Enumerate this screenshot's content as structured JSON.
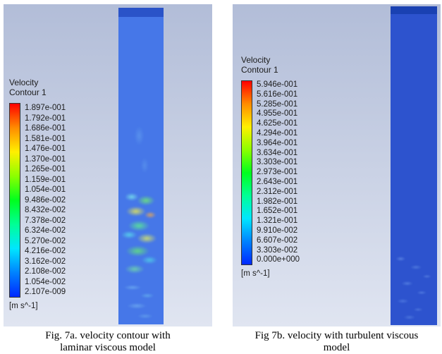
{
  "colorbar_stops": [
    "#ff0000",
    "#ff8c00",
    "#fff000",
    "#8cff00",
    "#00ff1e",
    "#00ff96",
    "#00e6ff",
    "#0082ff",
    "#0028ff"
  ],
  "colors": {
    "panel_bg_top": "#b2bdd8",
    "panel_bg_bottom": "#e0e5f1",
    "pipe_a": "#4677e8",
    "pipe_a_cap": "#2a53c8",
    "pipe_b": "#2d53ce",
    "pipe_b_cap": "#1a41b2",
    "legend_text": "#1c1c1c",
    "caption_text": "#000000"
  },
  "figures": [
    {
      "name": "Fig. 7a",
      "legend": {
        "title": "Velocity",
        "subtitle": "Contour 1",
        "unit": "[m s^-1]",
        "values": [
          "1.897e-001",
          "1.792e-001",
          "1.686e-001",
          "1.581e-001",
          "1.476e-001",
          "1.370e-001",
          "1.265e-001",
          "1.159e-001",
          "1.054e-001",
          "9.486e-002",
          "8.432e-002",
          "7.378e-002",
          "6.324e-002",
          "5.270e-002",
          "4.216e-002",
          "3.162e-002",
          "2.108e-002",
          "1.054e-002",
          "2.107e-009"
        ]
      },
      "caption": {
        "line1": "Fig. 7a. velocity contour with",
        "line2": "laminar viscous model"
      }
    },
    {
      "name": "Fig 7b",
      "legend": {
        "title": "Velocity",
        "subtitle": "Contour 1",
        "unit": "[m s^-1]",
        "values": [
          "5.946e-001",
          "5.616e-001",
          "5.285e-001",
          "4.955e-001",
          "4.625e-001",
          "4.294e-001",
          "3.964e-001",
          "3.634e-001",
          "3.303e-001",
          "2.973e-001",
          "2.643e-001",
          "2.312e-001",
          "1.982e-001",
          "1.652e-001",
          "1.321e-001",
          "9.910e-002",
          "6.607e-002",
          "3.303e-002",
          "0.000e+000"
        ]
      },
      "caption": {
        "line1": "Fig 7b. velocity with turbulent viscous",
        "line2": "model"
      }
    }
  ]
}
